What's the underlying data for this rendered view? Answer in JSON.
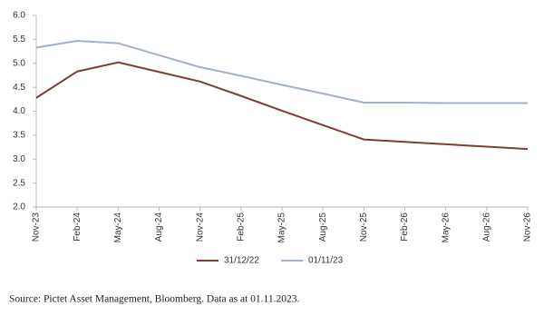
{
  "chart_data": {
    "type": "line",
    "categories": [
      "Nov-23",
      "Feb-24",
      "May-24",
      "Aug-24",
      "Nov-24",
      "Feb-25",
      "May-25",
      "Aug-25",
      "Nov-25",
      "Feb-26",
      "May-26",
      "Aug-26",
      "Nov-26"
    ],
    "series": [
      {
        "name": "31/12/22",
        "color": "#7b3f34",
        "values": [
          4.28,
          4.83,
          5.02,
          4.82,
          4.62,
          4.32,
          4.01,
          3.71,
          3.41,
          3.36,
          3.31,
          3.26,
          3.21
        ]
      },
      {
        "name": "01/11/23",
        "color": "#a3b1c6",
        "values": [
          5.33,
          5.47,
          5.42,
          5.17,
          4.92,
          4.74,
          4.55,
          4.37,
          4.18,
          4.18,
          4.17,
          4.17,
          4.17
        ]
      }
    ],
    "ylim": [
      2,
      6
    ],
    "yticks": [
      {
        "value": 2,
        "label": "2.0"
      },
      {
        "value": 2.5,
        "label": "2.5"
      },
      {
        "value": 3,
        "label": "3.0"
      },
      {
        "value": 3.5,
        "label": "3.5"
      },
      {
        "value": 4,
        "label": "4.0"
      },
      {
        "value": 4.5,
        "label": "4.5"
      },
      {
        "value": 5,
        "label": "5.0"
      },
      {
        "value": 5.5,
        "label": "5.5"
      },
      {
        "value": 6,
        "label": "6.0"
      }
    ],
    "grid": false,
    "legend": "bottom",
    "source": "Source: Pictet Asset Management, Bloomberg. Data as at 01.11.2023."
  }
}
